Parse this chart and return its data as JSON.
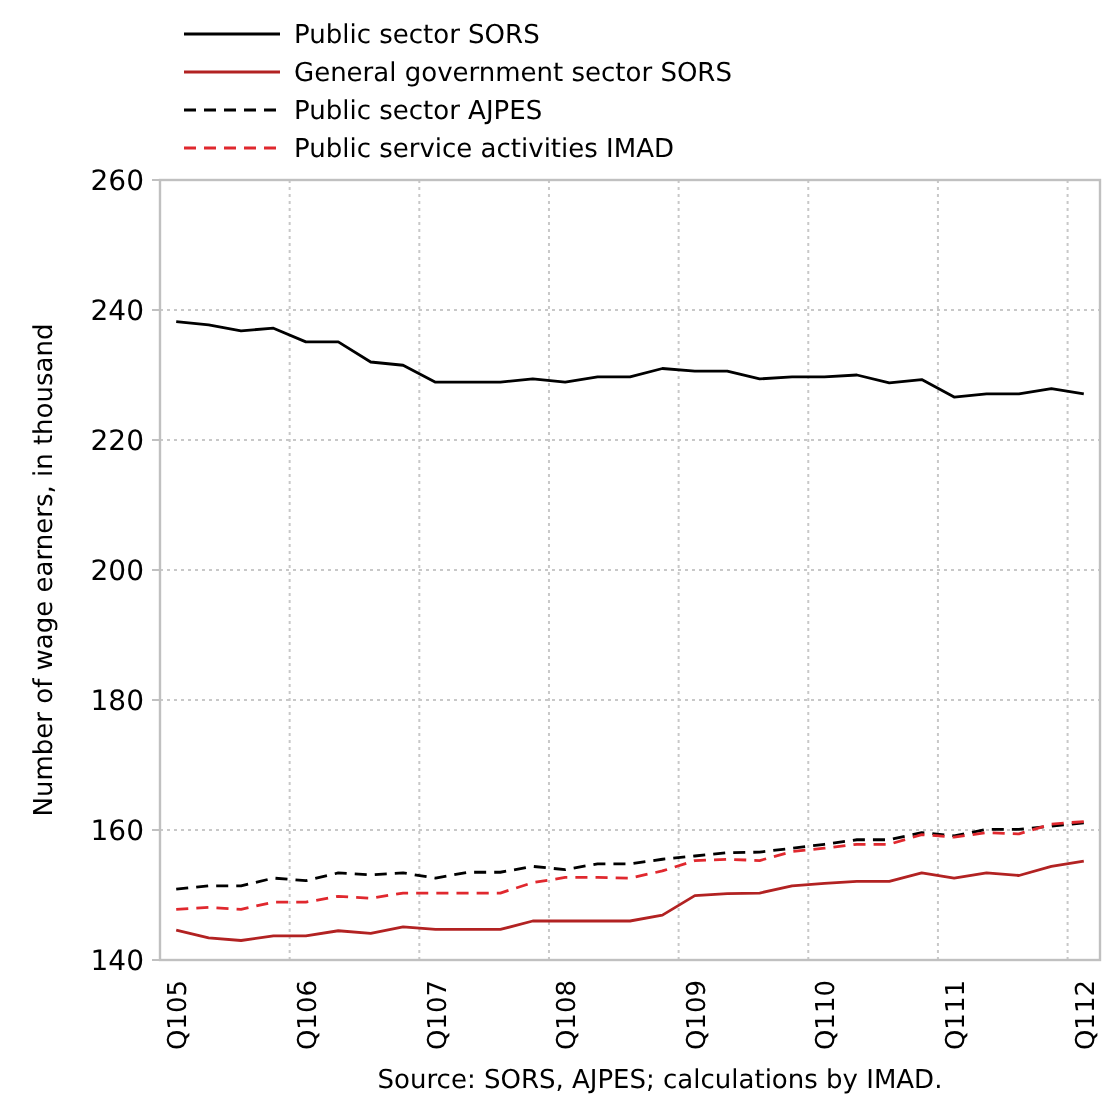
{
  "chart_data": {
    "type": "line",
    "ylabel": "Number of wage earners, in thousand",
    "annotations": [
      "Source: SORS, AJPES; calculations by IMAD."
    ],
    "categories": [
      "Q105",
      null,
      null,
      null,
      "Q106",
      null,
      null,
      null,
      "Q107",
      null,
      null,
      null,
      "Q108",
      null,
      null,
      null,
      "Q109",
      null,
      null,
      null,
      "Q110",
      null,
      null,
      null,
      "Q111",
      null,
      null,
      null,
      "Q112"
    ],
    "ylim": [
      140,
      260
    ],
    "yticks": [
      140,
      160,
      180,
      200,
      220,
      240,
      260
    ],
    "grid": true,
    "legend": "top",
    "marker": "none",
    "series": [
      {
        "name": "Public sector SORS",
        "color": "#000000",
        "line_style": "solid",
        "values": [
          238.2,
          237.7,
          236.8,
          237.2,
          235.1,
          235.1,
          232.0,
          231.5,
          228.9,
          228.9,
          228.9,
          229.4,
          228.9,
          229.7,
          229.7,
          231.0,
          230.6,
          230.6,
          229.4,
          229.7,
          229.7,
          230.0,
          228.8,
          229.3,
          226.6,
          227.1,
          227.1,
          227.9,
          227.1
        ]
      },
      {
        "name": "General government sector SORS",
        "color": "#b22222",
        "line_style": "solid",
        "values": [
          144.6,
          143.4,
          143.0,
          143.7,
          143.7,
          144.5,
          144.1,
          145.1,
          144.7,
          144.7,
          144.7,
          146.0,
          146.0,
          146.0,
          146.0,
          146.9,
          149.9,
          150.2,
          150.3,
          151.4,
          151.8,
          152.1,
          152.1,
          153.4,
          152.6,
          153.4,
          153.0,
          154.4,
          155.2
        ]
      },
      {
        "name": "Public sector AJPES",
        "color": "#000000",
        "line_style": "dashed",
        "values": [
          150.9,
          151.4,
          151.4,
          152.6,
          152.2,
          153.4,
          153.1,
          153.4,
          152.6,
          153.5,
          153.5,
          154.4,
          153.9,
          154.8,
          154.8,
          155.5,
          156.0,
          156.5,
          156.6,
          157.2,
          157.8,
          158.5,
          158.5,
          159.6,
          159.1,
          160.1,
          160.1,
          160.6,
          161.1
        ]
      },
      {
        "name": "Public service activities IMAD",
        "color": "#e0282e",
        "line_style": "dashed",
        "values": [
          147.8,
          148.1,
          147.8,
          148.9,
          148.9,
          149.8,
          149.5,
          150.3,
          150.3,
          150.3,
          150.3,
          151.9,
          152.7,
          152.7,
          152.6,
          153.7,
          155.3,
          155.5,
          155.3,
          156.7,
          157.2,
          157.8,
          157.8,
          159.3,
          158.9,
          159.6,
          159.4,
          160.9,
          161.3
        ]
      }
    ]
  }
}
